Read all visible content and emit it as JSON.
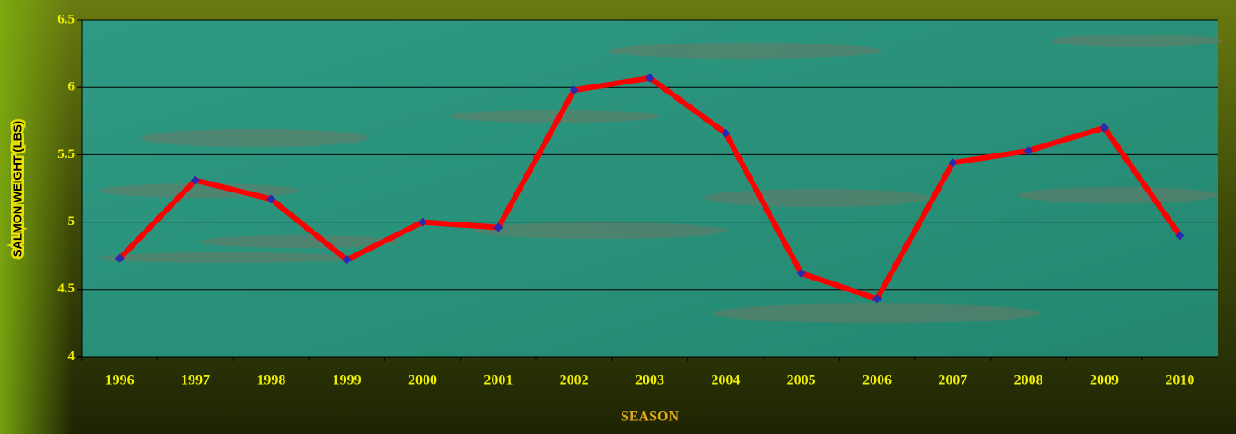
{
  "chart_data": {
    "type": "line",
    "categories": [
      "1996",
      "1997",
      "1998",
      "1999",
      "2000",
      "2001",
      "2002",
      "2003",
      "2004",
      "2005",
      "2006",
      "2007",
      "2008",
      "2009",
      "2010"
    ],
    "series": [
      {
        "values": [
          4.73,
          5.31,
          5.17,
          4.72,
          5.0,
          4.96,
          5.98,
          6.07,
          5.66,
          4.62,
          4.43,
          5.44,
          5.53,
          5.7,
          4.9
        ],
        "color": "#ff0000",
        "marker_color": "#2a2ab0"
      }
    ],
    "ylim": [
      4,
      6.5
    ],
    "yticks": [
      4,
      4.5,
      5,
      5.5,
      6,
      6.5
    ],
    "grid": true,
    "x_label": "SEASON",
    "y_label": "SALMON WEIGHT (LBS)"
  }
}
